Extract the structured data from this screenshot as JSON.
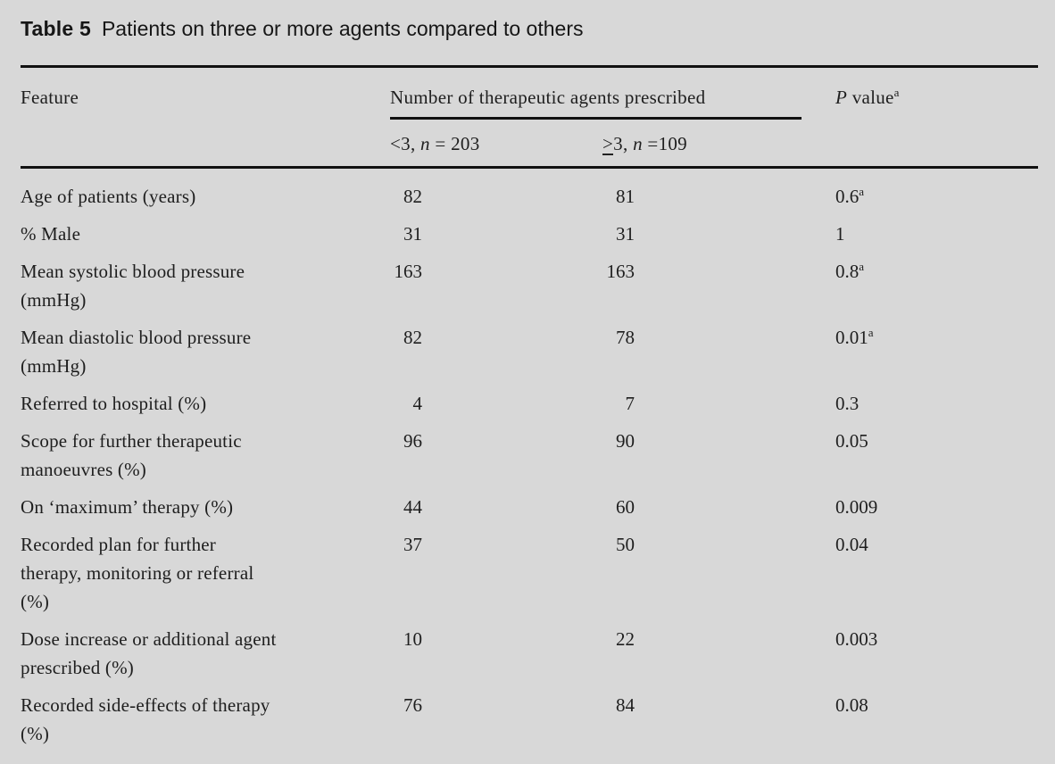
{
  "title": {
    "label": "Table 5",
    "text": "Patients on three or more agents compared to others"
  },
  "header": {
    "feature": "Feature",
    "span_header": "Number of therapeutic agents prescribed",
    "p_italic": "P",
    "p_rest": " value",
    "p_sup": "a"
  },
  "subheader": {
    "lt3": {
      "pre": "<3, ",
      "n": "n",
      "post": " = 203"
    },
    "ge3": {
      "geq": ">",
      "pre": "3, ",
      "n": "n",
      "post": " =109"
    }
  },
  "rows": [
    {
      "feature": "Age of patients (years)",
      "lt3": "82",
      "ge3": "81",
      "p": "0.6",
      "p_sup": "a"
    },
    {
      "feature": "% Male",
      "lt3": "31",
      "ge3": "31",
      "p": "1",
      "p_sup": ""
    },
    {
      "feature": "Mean systolic blood pressure\n(mmHg)",
      "lt3": "163",
      "ge3": "163",
      "p": "0.8",
      "p_sup": "a"
    },
    {
      "feature": "Mean diastolic blood pressure\n(mmHg)",
      "lt3": "82",
      "ge3": "78",
      "p": "0.01",
      "p_sup": "a"
    },
    {
      "feature": "Referred to hospital (%)",
      "lt3": "4",
      "ge3": "7",
      "p": "0.3",
      "p_sup": ""
    },
    {
      "feature": "Scope for further therapeutic\nmanoeuvres (%)",
      "lt3": "96",
      "ge3": "90",
      "p": "0.05",
      "p_sup": ""
    },
    {
      "feature": "On ‘maximum’ therapy (%)",
      "lt3": "44",
      "ge3": "60",
      "p": "0.009",
      "p_sup": ""
    },
    {
      "feature": "Recorded plan for further\ntherapy, monitoring or referral\n(%)",
      "lt3": "37",
      "ge3": "50",
      "p": "0.04",
      "p_sup": ""
    },
    {
      "feature": "Dose increase or additional agent\nprescribed (%)",
      "lt3": "10",
      "ge3": "22",
      "p": "0.003",
      "p_sup": ""
    },
    {
      "feature": "Recorded side-effects of therapy\n(%)",
      "lt3": "76",
      "ge3": "84",
      "p": "0.08",
      "p_sup": ""
    }
  ],
  "colors": {
    "background": "#d8d8d8",
    "text": "#1e1e1e",
    "rule": "#111111"
  }
}
